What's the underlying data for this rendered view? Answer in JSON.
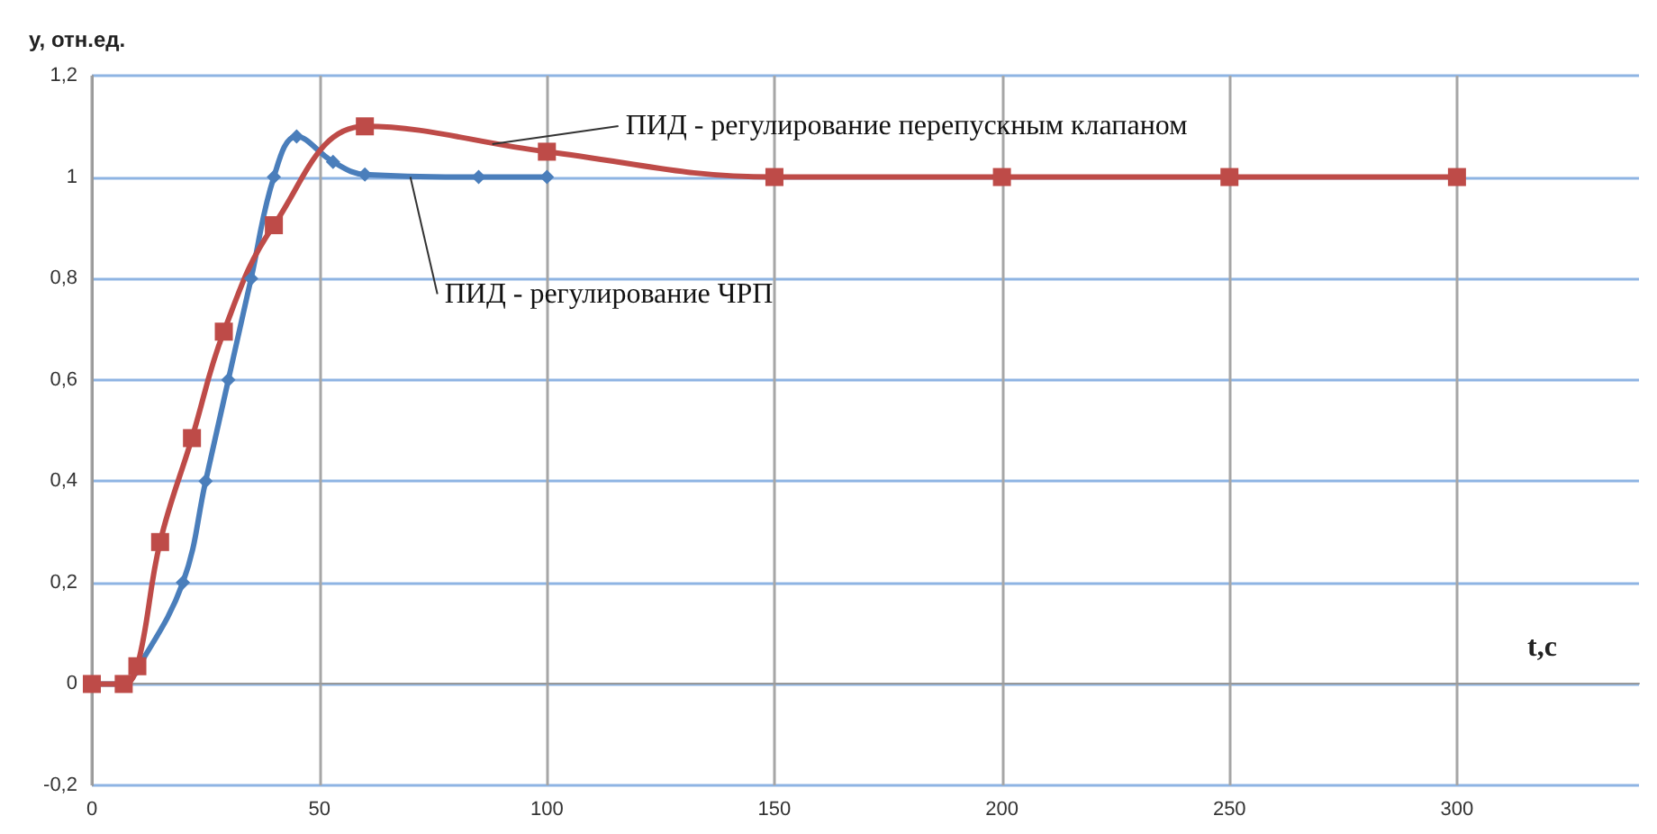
{
  "chart_data": {
    "type": "line",
    "xlabel": "t,c",
    "ylabel": "y, отн.ед.",
    "xlim": [
      0,
      340
    ],
    "xticks": [
      0,
      50,
      100,
      150,
      200,
      250,
      300
    ],
    "ylim": [
      -0.2,
      1.2
    ],
    "yticks": [
      {
        "value": -0.2,
        "label": "-0,2"
      },
      {
        "value": 0,
        "label": "0"
      },
      {
        "value": 0.2,
        "label": "0,2"
      },
      {
        "value": 0.4,
        "label": "0,4"
      },
      {
        "value": 0.6,
        "label": "0,6"
      },
      {
        "value": 0.8,
        "label": "0,8"
      },
      {
        "value": 1,
        "label": "1"
      },
      {
        "value": 1.2,
        "label": "1,2"
      }
    ],
    "grid": true,
    "series": [
      {
        "color": "#4a7ebb",
        "marker": "diamond",
        "x": [
          0,
          7,
          10,
          20,
          25,
          30,
          35,
          40,
          45,
          53,
          60,
          85,
          100
        ],
        "values": [
          0,
          0,
          0.03,
          0.2,
          0.4,
          0.6,
          0.8,
          1.0,
          1.08,
          1.03,
          1.005,
          1.0,
          1.0
        ]
      },
      {
        "color": "#be4b48",
        "marker": "square",
        "x": [
          0,
          7,
          10,
          15,
          22,
          29,
          40,
          60,
          100,
          150,
          200,
          250,
          300
        ],
        "values": [
          0,
          0,
          0.035,
          0.28,
          0.485,
          0.695,
          0.905,
          1.1,
          1.05,
          1.0,
          1.0,
          1.0,
          1.0
        ]
      }
    ],
    "annotations": [
      {
        "text": "ПИД - регулирование перепускным клапаном",
        "x": 88,
        "y": 1.065
      },
      {
        "text": "ПИД - регулирование ЧРП",
        "x": 70,
        "y": 1.0
      }
    ]
  }
}
